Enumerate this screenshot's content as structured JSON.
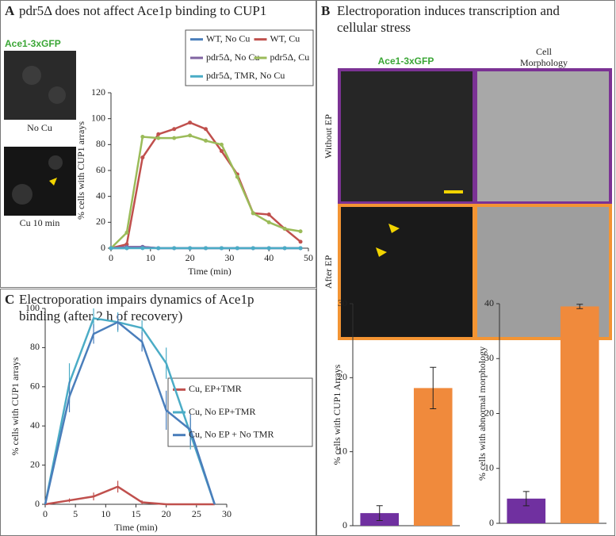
{
  "figure": {
    "A": {
      "label": "A",
      "title": "pdr5Δ does not affect Ace1p binding to CUP1",
      "channel": "Ace1-3xGFP",
      "image_labels": [
        "No Cu",
        "Cu 10 min"
      ]
    },
    "B": {
      "label": "B",
      "title": [
        "Electroporation induces transcription and",
        "cellular stress"
      ],
      "channels": [
        "Ace1-3xGFP",
        [
          "Cell",
          "Morphology"
        ]
      ],
      "row_labels": [
        "Without EP",
        "After EP"
      ]
    },
    "C": {
      "label": "C",
      "title": [
        "Electroporation impairs dynamics of Ace1p",
        "binding (after 2 h  of recovery)"
      ]
    }
  },
  "chart_data": [
    {
      "type": "line",
      "xlabel": "Time (min)",
      "ylabel": "% cells with CUP1 arrays",
      "x": [
        0,
        4,
        8,
        12,
        16,
        20,
        24,
        28,
        32,
        36,
        40,
        44,
        48
      ],
      "series": [
        {
          "name": "WT, No Cu",
          "color": "#4a7ebb",
          "values": [
            0,
            0,
            1,
            0,
            0,
            0,
            0,
            0,
            0,
            0,
            0,
            0,
            0
          ]
        },
        {
          "name": "WT, Cu",
          "color": "#c0504d",
          "values": [
            0,
            3,
            70,
            88,
            92,
            97,
            92,
            75,
            57,
            27,
            26,
            15,
            5
          ]
        },
        {
          "name": "pdr5Δ, No Cu",
          "color": "#8064a2",
          "values": [
            0,
            1,
            1,
            0,
            0,
            0,
            0,
            0,
            0,
            0,
            0,
            0,
            0
          ]
        },
        {
          "name": "pdr5Δ, Cu",
          "color": "#9bbb59",
          "values": [
            0,
            12,
            86,
            85,
            85,
            87,
            83,
            80,
            55,
            27,
            20,
            15,
            13
          ]
        },
        {
          "name": "pdr5Δ, TMR, No Cu",
          "color": "#4bacc6",
          "values": [
            0,
            0,
            0,
            0,
            0,
            0,
            0,
            0,
            0,
            0,
            0,
            0,
            0
          ]
        }
      ],
      "xlim": [
        0,
        50
      ],
      "xticks": [
        0,
        10,
        20,
        30,
        40,
        50
      ],
      "ylim": [
        0,
        120
      ],
      "yticks": [
        0,
        20,
        40,
        60,
        80,
        100,
        120
      ]
    },
    {
      "type": "line",
      "xlabel": "Time (min)",
      "ylabel": "% cells with CUP1 arrays",
      "x": [
        0,
        4,
        8,
        12,
        16,
        20,
        24,
        28
      ],
      "series": [
        {
          "name": "Cu, EP+TMR",
          "color": "#c0504d",
          "values": [
            0,
            2,
            4,
            9,
            1,
            0,
            0,
            0
          ],
          "errors": [
            0,
            1,
            2,
            3,
            1,
            0,
            0,
            0
          ]
        },
        {
          "name": "Cu, No EP+TMR",
          "color": "#4bacc6",
          "values": [
            0,
            62,
            95,
            93,
            90,
            72,
            36,
            0
          ],
          "errors": [
            0,
            10,
            5,
            5,
            4,
            8,
            8,
            0
          ]
        },
        {
          "name": "Cu, No EP + No TMR",
          "color": "#4a7ebb",
          "values": [
            0,
            55,
            87,
            93,
            83,
            48,
            38,
            0
          ],
          "errors": [
            0,
            8,
            5,
            4,
            5,
            10,
            8,
            0
          ]
        }
      ],
      "xlim": [
        0,
        30
      ],
      "xticks": [
        0,
        5,
        10,
        15,
        20,
        25,
        30
      ],
      "ylim": [
        0,
        100
      ],
      "yticks": [
        0,
        20,
        40,
        60,
        80,
        100
      ]
    },
    {
      "type": "bar",
      "ylabel": "% cells with CUP1 Arrays",
      "categories": [
        null,
        null
      ],
      "values": [
        1.7,
        18.6
      ],
      "errors": [
        1.0,
        2.8
      ],
      "colors": [
        "#7030a0",
        "#f08a3c"
      ],
      "ylim": [
        0,
        30
      ],
      "yticks": [
        0,
        10,
        20,
        30
      ]
    },
    {
      "type": "bar",
      "ylabel": "% cells with abnormal morphology",
      "categories": [
        null,
        null
      ],
      "values": [
        4.5,
        39.5
      ],
      "errors": [
        1.3,
        0.4
      ],
      "colors": [
        "#7030a0",
        "#f08a3c"
      ],
      "ylim": [
        0,
        40
      ],
      "yticks": [
        0,
        10,
        20,
        30,
        40
      ]
    }
  ]
}
